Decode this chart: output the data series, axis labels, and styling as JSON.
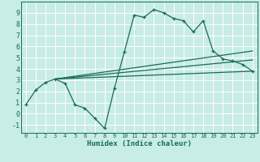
{
  "xlabel": "Humidex (Indice chaleur)",
  "background_color": "#c8ece6",
  "grid_color": "#ffffff",
  "line_color": "#1a6b5a",
  "xlim": [
    -0.5,
    23.5
  ],
  "ylim": [
    -1.7,
    10.0
  ],
  "xticks": [
    0,
    1,
    2,
    3,
    4,
    5,
    6,
    7,
    8,
    9,
    10,
    11,
    12,
    13,
    14,
    15,
    16,
    17,
    18,
    19,
    20,
    21,
    22,
    23
  ],
  "yticks": [
    -1,
    0,
    1,
    2,
    3,
    4,
    5,
    6,
    7,
    8,
    9
  ],
  "series1_x": [
    0,
    1,
    2,
    3,
    4,
    5,
    6,
    7,
    8,
    9,
    10,
    11,
    12,
    13,
    14,
    15,
    16,
    17,
    18,
    19,
    20,
    21,
    22,
    23
  ],
  "series1_y": [
    0.8,
    2.1,
    2.8,
    3.1,
    2.7,
    0.8,
    0.5,
    -0.4,
    -1.3,
    2.3,
    5.5,
    8.8,
    8.6,
    9.3,
    9.0,
    8.5,
    8.3,
    7.3,
    8.3,
    5.6,
    4.9,
    4.7,
    4.4,
    3.8
  ],
  "series2_x": [
    3,
    23
  ],
  "series2_y": [
    3.1,
    5.6
  ],
  "series3_x": [
    3,
    23
  ],
  "series3_y": [
    3.1,
    4.8
  ],
  "series4_x": [
    3,
    23
  ],
  "series4_y": [
    3.1,
    3.8
  ]
}
